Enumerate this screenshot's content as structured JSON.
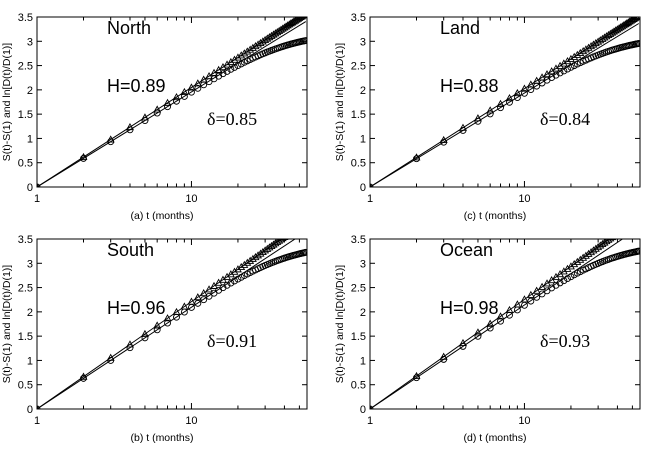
{
  "chart_data": [
    {
      "type": "scatter",
      "panel_name": "North",
      "H_label": "H=0.89",
      "delta_label": "δ=0.85",
      "caption": "(a)  t  (months)",
      "ylabel": "S(t)-S(1)    and    ln[D(t)/D(1)]",
      "x_scale": "log",
      "xlim": [
        1,
        56
      ],
      "ylim": [
        0,
        3.5
      ],
      "x_ticks": [
        1,
        10
      ],
      "x_tick_labels": [
        "1",
        "10"
      ],
      "y_ticks": [
        0,
        0.5,
        1,
        1.5,
        2,
        2.5,
        3,
        3.5
      ],
      "y_tick_labels": [
        "0",
        "0.5",
        "1",
        "1.5",
        "2",
        "2.5",
        "3",
        "3.5"
      ],
      "H": 0.89,
      "delta": 0.85,
      "D_saturation": 3.2
    },
    {
      "type": "scatter",
      "panel_name": "Land",
      "H_label": "H=0.88",
      "delta_label": "δ=0.84",
      "caption": "(c)  t  (months)",
      "ylabel": "S(t)-S(1)    and    ln[D(t)/D(1)]",
      "x_scale": "log",
      "xlim": [
        1,
        56
      ],
      "ylim": [
        0,
        3.5
      ],
      "x_ticks": [
        1,
        10
      ],
      "x_tick_labels": [
        "1",
        "10"
      ],
      "y_ticks": [
        0,
        0.5,
        1,
        1.5,
        2,
        2.5,
        3,
        3.5
      ],
      "y_tick_labels": [
        "0",
        "0.5",
        "1",
        "1.5",
        "2",
        "2.5",
        "3",
        "3.5"
      ],
      "H": 0.88,
      "delta": 0.84,
      "D_saturation": 3.12
    },
    {
      "type": "scatter",
      "panel_name": "South",
      "H_label": "H=0.96",
      "delta_label": "δ=0.91",
      "caption": "(b)  t  (months)",
      "ylabel": "S(t)-S(1)    and    ln[D(t)/D(1)]",
      "x_scale": "log",
      "xlim": [
        1,
        56
      ],
      "ylim": [
        0,
        3.5
      ],
      "x_ticks": [
        1,
        10
      ],
      "x_tick_labels": [
        "1",
        "10"
      ],
      "y_ticks": [
        0,
        0.5,
        1,
        1.5,
        2,
        2.5,
        3,
        3.5
      ],
      "y_tick_labels": [
        "0",
        "0.5",
        "1",
        "1.5",
        "2",
        "2.5",
        "3",
        "3.5"
      ],
      "H": 0.96,
      "delta": 0.91,
      "D_saturation": 3.42
    },
    {
      "type": "scatter",
      "panel_name": "Ocean",
      "H_label": "H=0.98",
      "delta_label": "δ=0.93",
      "caption": "(d)  t  (months)",
      "ylabel": "S(t)-S(1)    and    ln[D(t)/D(1)]",
      "x_scale": "log",
      "xlim": [
        1,
        56
      ],
      "ylim": [
        0,
        3.5
      ],
      "x_ticks": [
        1,
        10
      ],
      "x_tick_labels": [
        "1",
        "10"
      ],
      "y_ticks": [
        0,
        0.5,
        1,
        1.5,
        2,
        2.5,
        3,
        3.5
      ],
      "y_tick_labels": [
        "0",
        "0.5",
        "1",
        "1.5",
        "2",
        "2.5",
        "3",
        "3.5"
      ],
      "H": 0.98,
      "delta": 0.93,
      "D_saturation": 3.42
    }
  ]
}
